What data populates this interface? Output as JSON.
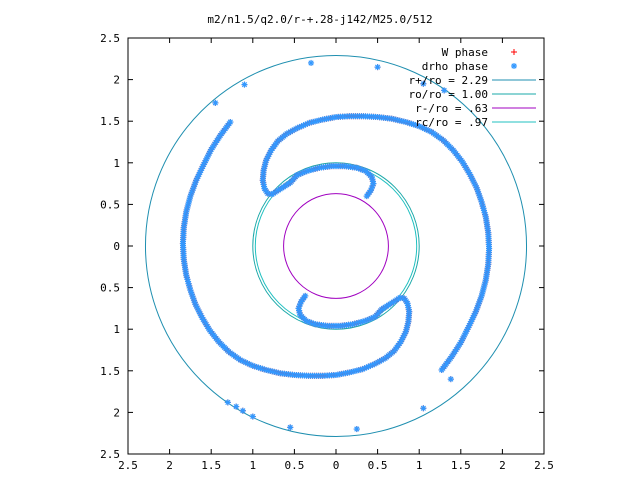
{
  "chart_data": {
    "type": "scatter",
    "title": "m2/n1.5/q2.0/r-+.28-j142/M25.0/512",
    "xlim": [
      -2.5,
      2.5
    ],
    "ylim": [
      -2.5,
      2.5
    ],
    "xticks": [
      -2.5,
      -2,
      -1.5,
      -1,
      -0.5,
      0,
      0.5,
      1,
      1.5,
      2,
      2.5
    ],
    "yticks": [
      -2.5,
      -2,
      -1.5,
      -1,
      -0.5,
      0,
      0.5,
      1,
      1.5,
      2,
      2.5
    ],
    "xtick_labels": [
      "2.5",
      "2",
      "1.5",
      "1",
      "0.5",
      "0",
      "0.5",
      "1",
      "1.5",
      "2",
      "2.5"
    ],
    "ytick_labels": [
      "2.5",
      "2",
      "1.5",
      "1",
      "0.5",
      "0",
      "0.5",
      "1",
      "1.5",
      "2",
      "2.5"
    ],
    "grid": false,
    "legend_position": "top-right",
    "series": [
      {
        "name": "W phase",
        "kind": "points",
        "marker": "plus",
        "color": "#ff0000",
        "source": "spiral_arms"
      },
      {
        "name": "drho phase",
        "kind": "points",
        "marker": "star",
        "color": "#3399ff",
        "source": "spiral_arms_plus_outliers"
      },
      {
        "name": "r+/ro = 2.29",
        "kind": "circle",
        "radius": 2.29,
        "color": "#1f8fb0"
      },
      {
        "name": "ro/ro = 1.00",
        "kind": "circle",
        "radius": 1.0,
        "color": "#1aa8a8"
      },
      {
        "name": "r-/ro =  .63",
        "kind": "circle",
        "radius": 0.63,
        "color": "#a000c0"
      },
      {
        "name": "rc/ro =  .97",
        "kind": "circle",
        "radius": 0.97,
        "color": "#20c0c0"
      }
    ],
    "spiral_arms": [
      {
        "arm": "upper",
        "points": [
          [
            -0.47,
            0.85
          ],
          [
            -0.55,
            0.76
          ],
          [
            -0.63,
            0.71
          ],
          [
            -0.71,
            0.66
          ],
          [
            -0.77,
            0.62
          ],
          [
            -0.82,
            0.63
          ],
          [
            -0.86,
            0.69
          ],
          [
            -0.88,
            0.79
          ],
          [
            -0.87,
            0.91
          ],
          [
            -0.84,
            1.03
          ],
          [
            -0.78,
            1.15
          ],
          [
            -0.7,
            1.26
          ],
          [
            -0.59,
            1.35
          ],
          [
            -0.46,
            1.42
          ],
          [
            -0.32,
            1.48
          ],
          [
            -0.16,
            1.52
          ],
          [
            0.0,
            1.55
          ],
          [
            0.16,
            1.56
          ],
          [
            0.33,
            1.56
          ],
          [
            0.5,
            1.55
          ],
          [
            0.67,
            1.53
          ],
          [
            0.84,
            1.49
          ],
          [
            1.0,
            1.44
          ],
          [
            1.15,
            1.37
          ],
          [
            1.29,
            1.27
          ],
          [
            1.41,
            1.15
          ],
          [
            1.52,
            1.01
          ],
          [
            1.61,
            0.86
          ],
          [
            1.69,
            0.7
          ],
          [
            1.75,
            0.53
          ],
          [
            1.8,
            0.35
          ],
          [
            1.83,
            0.16
          ],
          [
            1.84,
            -0.03
          ],
          [
            1.83,
            -0.22
          ],
          [
            1.8,
            -0.41
          ],
          [
            1.75,
            -0.6
          ],
          [
            1.68,
            -0.79
          ],
          [
            1.59,
            -0.98
          ],
          [
            1.5,
            -1.16
          ],
          [
            1.39,
            -1.33
          ],
          [
            1.27,
            -1.49
          ]
        ]
      },
      {
        "arm": "upper-inner",
        "points": [
          [
            -0.47,
            0.85
          ],
          [
            -0.35,
            0.9
          ],
          [
            -0.2,
            0.94
          ],
          [
            -0.05,
            0.96
          ],
          [
            0.1,
            0.96
          ],
          [
            0.25,
            0.94
          ],
          [
            0.36,
            0.9
          ],
          [
            0.43,
            0.83
          ],
          [
            0.45,
            0.75
          ],
          [
            0.42,
            0.67
          ],
          [
            0.37,
            0.6
          ]
        ]
      },
      {
        "arm": "lower",
        "points": [
          [
            0.47,
            -0.85
          ],
          [
            0.55,
            -0.76
          ],
          [
            0.63,
            -0.71
          ],
          [
            0.71,
            -0.66
          ],
          [
            0.77,
            -0.62
          ],
          [
            0.82,
            -0.63
          ],
          [
            0.86,
            -0.69
          ],
          [
            0.88,
            -0.79
          ],
          [
            0.87,
            -0.91
          ],
          [
            0.84,
            -1.03
          ],
          [
            0.78,
            -1.15
          ],
          [
            0.7,
            -1.26
          ],
          [
            0.59,
            -1.35
          ],
          [
            0.46,
            -1.42
          ],
          [
            0.32,
            -1.48
          ],
          [
            0.16,
            -1.52
          ],
          [
            0.0,
            -1.55
          ],
          [
            -0.16,
            -1.56
          ],
          [
            -0.33,
            -1.56
          ],
          [
            -0.5,
            -1.55
          ],
          [
            -0.67,
            -1.53
          ],
          [
            -0.84,
            -1.49
          ],
          [
            -1.0,
            -1.44
          ],
          [
            -1.15,
            -1.37
          ],
          [
            -1.29,
            -1.27
          ],
          [
            -1.41,
            -1.15
          ],
          [
            -1.52,
            -1.01
          ],
          [
            -1.61,
            -0.86
          ],
          [
            -1.69,
            -0.7
          ],
          [
            -1.75,
            -0.53
          ],
          [
            -1.8,
            -0.35
          ],
          [
            -1.83,
            -0.16
          ],
          [
            -1.84,
            0.03
          ],
          [
            -1.83,
            0.22
          ],
          [
            -1.8,
            0.41
          ],
          [
            -1.75,
            0.6
          ],
          [
            -1.68,
            0.79
          ],
          [
            -1.59,
            0.98
          ],
          [
            -1.5,
            1.16
          ],
          [
            -1.39,
            1.33
          ],
          [
            -1.27,
            1.49
          ]
        ]
      },
      {
        "arm": "lower-inner",
        "points": [
          [
            0.47,
            -0.85
          ],
          [
            0.35,
            -0.9
          ],
          [
            0.2,
            -0.94
          ],
          [
            0.05,
            -0.96
          ],
          [
            -0.1,
            -0.96
          ],
          [
            -0.25,
            -0.94
          ],
          [
            -0.36,
            -0.9
          ],
          [
            -0.43,
            -0.83
          ],
          [
            -0.45,
            -0.75
          ],
          [
            -0.42,
            -0.67
          ],
          [
            -0.37,
            -0.6
          ]
        ]
      }
    ],
    "outlier_points": [
      [
        -1.45,
        1.72
      ],
      [
        -1.1,
        1.94
      ],
      [
        -0.3,
        2.2
      ],
      [
        0.5,
        2.15
      ],
      [
        1.05,
        1.95
      ],
      [
        1.3,
        1.87
      ],
      [
        1.38,
        -1.6
      ],
      [
        1.05,
        -1.95
      ],
      [
        0.25,
        -2.2
      ],
      [
        -0.55,
        -2.18
      ],
      [
        -1.0,
        -2.05
      ],
      [
        -1.3,
        -1.88
      ],
      [
        -1.2,
        -1.93
      ],
      [
        -1.12,
        -1.98
      ]
    ]
  }
}
